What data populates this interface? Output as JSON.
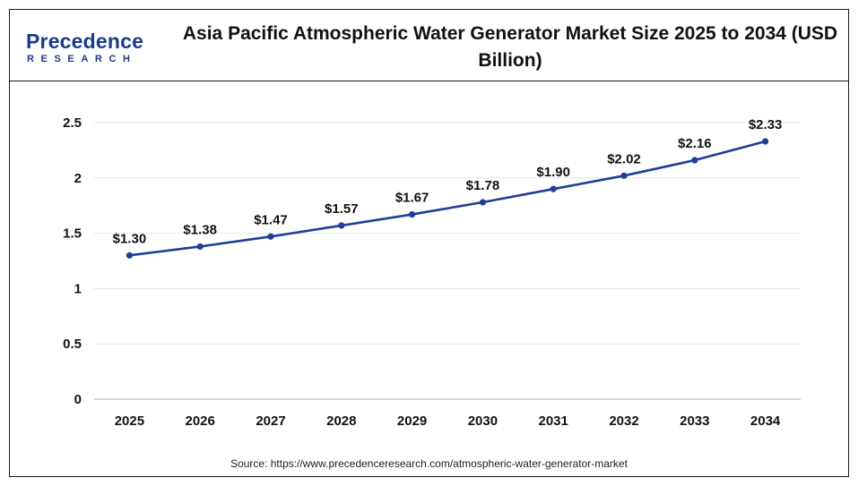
{
  "logo": {
    "name": "Precedence",
    "sub": "RESEARCH",
    "color": "#1d3a8a"
  },
  "chart_data": {
    "type": "line",
    "title": "Asia Pacific Atmospheric Water Generator Market Size 2025 to 2034 (USD Billion)",
    "xlabel": "",
    "ylabel": "",
    "categories": [
      "2025",
      "2026",
      "2027",
      "2028",
      "2029",
      "2030",
      "2031",
      "2032",
      "2033",
      "2034"
    ],
    "series": [
      {
        "values": [
          1.3,
          1.38,
          1.47,
          1.57,
          1.67,
          1.78,
          1.9,
          2.02,
          2.16,
          2.33
        ],
        "labels": [
          "$1.30",
          "$1.38",
          "$1.47",
          "$1.57",
          "$1.67",
          "$1.78",
          "$1.90",
          "$2.02",
          "$2.16",
          "$2.33"
        ],
        "color": "#1f3e9a"
      }
    ],
    "ylim": [
      0,
      2.5
    ],
    "yticks": [
      0,
      0.5,
      1,
      1.5,
      2,
      2.5
    ],
    "ytick_labels": [
      "0",
      "0.5",
      "1",
      "1.5",
      "2",
      "2.5"
    ],
    "grid": true,
    "legend": "none"
  },
  "source": "Source: https://www.precedenceresearch.com/atmospheric-water-generator-market"
}
